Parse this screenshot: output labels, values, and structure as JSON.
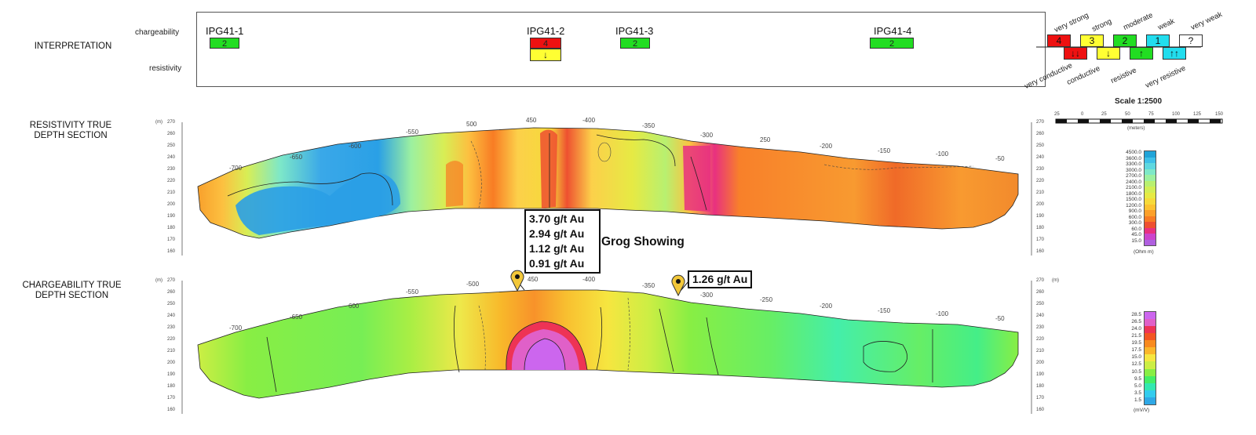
{
  "sections": {
    "interpretation": "INTERPRETATION",
    "resistivity_line1": "RESISTIVITY TRUE",
    "resistivity_line2": "DEPTH SECTION",
    "chargeability_line1": "CHARGEABILITY TRUE",
    "chargeability_line2": "DEPTH SECTION"
  },
  "interpretation": {
    "row_chargeability": "chargeability",
    "row_resistivity": "resistivity",
    "anomalies": [
      {
        "name": "IPG41-1",
        "chargeability_rank": "2",
        "chargeability_color": "#22dd22"
      },
      {
        "name": "IPG41-2",
        "chargeability_rank": "4",
        "chargeability_color": "#ee1111",
        "resistivity_symbol": "↓",
        "resistivity_color": "#ffff33"
      },
      {
        "name": "IPG41-3",
        "chargeability_rank": "2",
        "chargeability_color": "#22dd22"
      },
      {
        "name": "IPG41-4",
        "chargeability_rank": "2",
        "chargeability_color": "#22dd22"
      }
    ]
  },
  "key": {
    "chargeability": [
      {
        "rank": "4",
        "label": "very strong",
        "color": "#ee1111"
      },
      {
        "rank": "3",
        "label": "strong",
        "color": "#ffff33"
      },
      {
        "rank": "2",
        "label": "moderate",
        "color": "#22dd22"
      },
      {
        "rank": "1",
        "label": "weak",
        "color": "#22ddee"
      },
      {
        "rank": "?",
        "label": "very weak",
        "color": "#ffffff"
      }
    ],
    "resistivity": [
      {
        "symbol": "↓↓",
        "label": "very conductive",
        "color": "#ee1111"
      },
      {
        "symbol": "↓",
        "label": "conductive",
        "color": "#ffff33"
      },
      {
        "symbol": "↑",
        "label": "resistive",
        "color": "#22dd22"
      },
      {
        "symbol": "↑↑",
        "label": "very resistive",
        "color": "#22ddee"
      }
    ]
  },
  "scale": {
    "title": "Scale 1:2500",
    "ticks": [
      "25",
      "0",
      "25",
      "50",
      "75",
      "100",
      "125",
      "150"
    ],
    "unit": "(meters)"
  },
  "station_labels": {
    "resistivity": [
      "-700",
      "-650",
      "-600",
      "-550",
      "500",
      "450",
      "-400",
      "-350",
      "-300",
      "250",
      "-200",
      "-150",
      "-100",
      "-50"
    ],
    "chargeability": [
      "-700",
      "-650",
      "600",
      "-550",
      "-500",
      "450",
      "-400",
      "-350",
      "-300",
      "-250",
      "-200",
      "-150",
      "-100",
      "-50"
    ]
  },
  "elevation": {
    "unit": "(m)",
    "ticks": [
      "270",
      "260",
      "250",
      "240",
      "230",
      "220",
      "210",
      "200",
      "190",
      "180",
      "170",
      "160"
    ]
  },
  "resistivity_legend": {
    "values": [
      "4500.0",
      "3600.0",
      "3300.0",
      "3000.0",
      "2700.0",
      "2400.0",
      "2100.0",
      "1800.0",
      "1500.0",
      "1200.0",
      "900.0",
      "600.0",
      "300.0",
      "60.0",
      "45.0",
      "15.0"
    ],
    "unit": "(Ohm m)",
    "colors": [
      "#21a4d8",
      "#3fc0e8",
      "#5fd8e0",
      "#7ee8c8",
      "#9cf0a0",
      "#b8f070",
      "#d2ee55",
      "#e6ea44",
      "#f6da3a",
      "#fcc230",
      "#fca02a",
      "#f87c24",
      "#ee5030",
      "#e83080",
      "#cc44cc",
      "#b060e0"
    ]
  },
  "chargeability_legend": {
    "values": [
      "28.5",
      "26.5",
      "24.0",
      "21.5",
      "19.5",
      "17.5",
      "15.0",
      "12.5",
      "10.5",
      "9.5",
      "5.0",
      "3.5",
      "1.5"
    ],
    "unit": "(mV/V)",
    "colors": [
      "#cc66ee",
      "#e060c8",
      "#ee3355",
      "#f35522",
      "#f88a1f",
      "#fbb62a",
      "#f6e640",
      "#ccee44",
      "#88ee44",
      "#44ee66",
      "#33e8b0",
      "#33ccee",
      "#2fa8e6"
    ]
  },
  "annotations": {
    "assays_main": [
      "3.70 g/t Au",
      "2.94 g/t Au",
      "1.12 g/t Au",
      "0.91 g/t Au"
    ],
    "showing_name": "Grog Showing",
    "assay_secondary": "1.26 g/t Au"
  }
}
